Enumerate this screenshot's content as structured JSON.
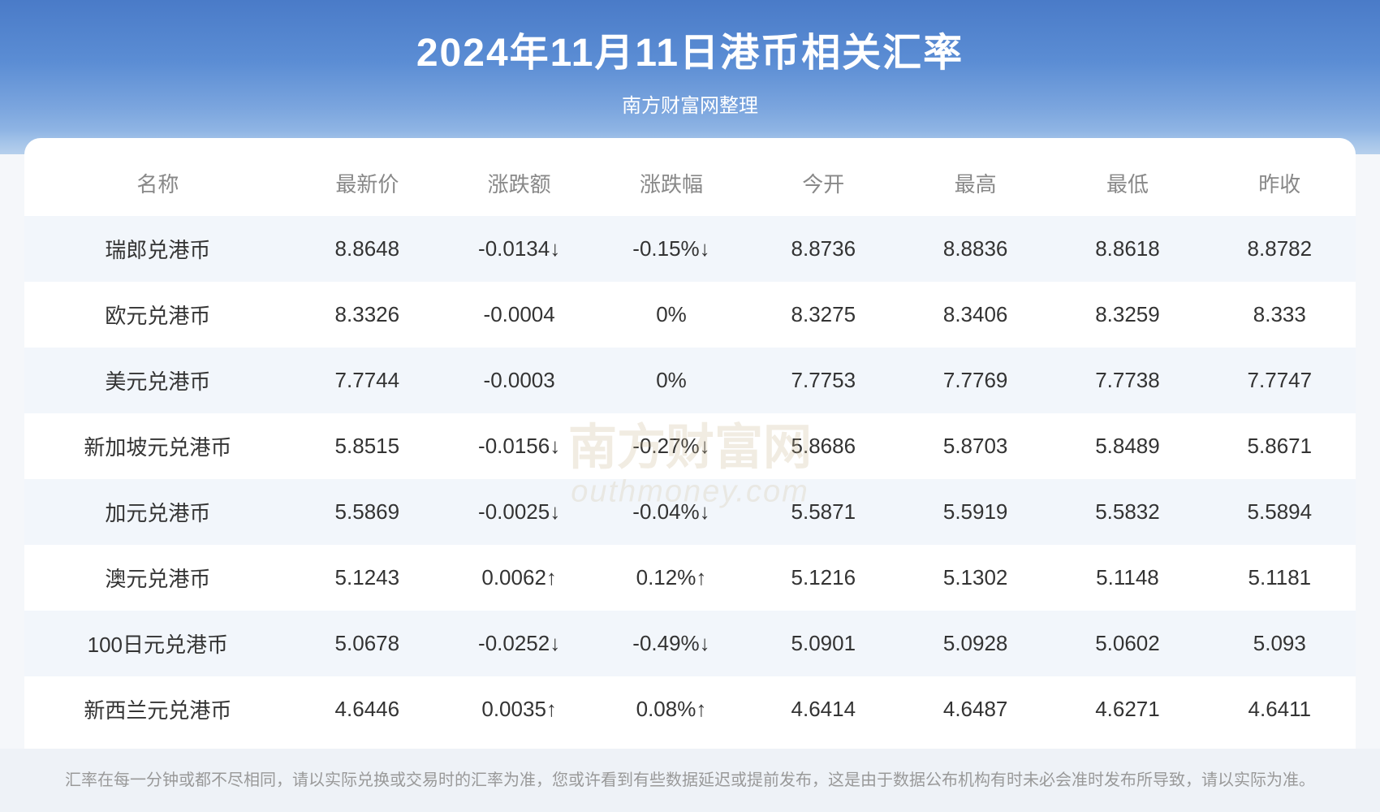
{
  "header": {
    "title": "2024年11月11日港币相关汇率",
    "subtitle": "南方财富网整理"
  },
  "table": {
    "columns": [
      "名称",
      "最新价",
      "涨跌额",
      "涨跌幅",
      "今开",
      "最高",
      "最低",
      "昨收"
    ],
    "rows": [
      {
        "name": "瑞郎兑港币",
        "latest": "8.8648",
        "change_amt": "-0.0134↓",
        "change_pct": "-0.15%↓",
        "open": "8.8736",
        "high": "8.8836",
        "low": "8.8618",
        "prev_close": "8.8782",
        "trend": "down"
      },
      {
        "name": "欧元兑港币",
        "latest": "8.3326",
        "change_amt": "-0.0004",
        "change_pct": "0%",
        "open": "8.3275",
        "high": "8.3406",
        "low": "8.3259",
        "prev_close": "8.333",
        "trend": "flat"
      },
      {
        "name": "美元兑港币",
        "latest": "7.7744",
        "change_amt": "-0.0003",
        "change_pct": "0%",
        "open": "7.7753",
        "high": "7.7769",
        "low": "7.7738",
        "prev_close": "7.7747",
        "trend": "flat"
      },
      {
        "name": "新加坡元兑港币",
        "latest": "5.8515",
        "change_amt": "-0.0156↓",
        "change_pct": "-0.27%↓",
        "open": "5.8686",
        "high": "5.8703",
        "low": "5.8489",
        "prev_close": "5.8671",
        "trend": "down"
      },
      {
        "name": "加元兑港币",
        "latest": "5.5869",
        "change_amt": "-0.0025↓",
        "change_pct": "-0.04%↓",
        "open": "5.5871",
        "high": "5.5919",
        "low": "5.5832",
        "prev_close": "5.5894",
        "trend": "down"
      },
      {
        "name": "澳元兑港币",
        "latest": "5.1243",
        "change_amt": "0.0062↑",
        "change_pct": "0.12%↑",
        "open": "5.1216",
        "high": "5.1302",
        "low": "5.1148",
        "prev_close": "5.1181",
        "trend": "up"
      },
      {
        "name": "100日元兑港币",
        "latest": "5.0678",
        "change_amt": "-0.0252↓",
        "change_pct": "-0.49%↓",
        "open": "5.0901",
        "high": "5.0928",
        "low": "5.0602",
        "prev_close": "5.093",
        "trend": "down"
      },
      {
        "name": "新西兰元兑港币",
        "latest": "4.6446",
        "change_amt": "0.0035↑",
        "change_pct": "0.08%↑",
        "open": "4.6414",
        "high": "4.6487",
        "low": "4.6271",
        "prev_close": "4.6411",
        "trend": "up"
      }
    ]
  },
  "watermark": {
    "main": "南方财富网",
    "sub": "outhmoney.com"
  },
  "footer": {
    "text": "汇率在每一分钟或都不尽相同，请以实际兑换或交易时的汇率为准，您或许看到有些数据延迟或提前发布，这是由于数据公布机构有时未必会准时发布所导致，请以实际为准。"
  },
  "colors": {
    "header_gradient_top": "#4a7bc8",
    "header_gradient_bottom": "#a3c4ea",
    "row_odd_bg": "#f2f6fb",
    "row_even_bg": "#ffffff",
    "text_default": "#333333",
    "text_header": "#888888",
    "text_up": "#e63c3c",
    "text_down": "#1fa83c",
    "footer_bg": "#eef2f7",
    "footer_text": "#999999"
  }
}
